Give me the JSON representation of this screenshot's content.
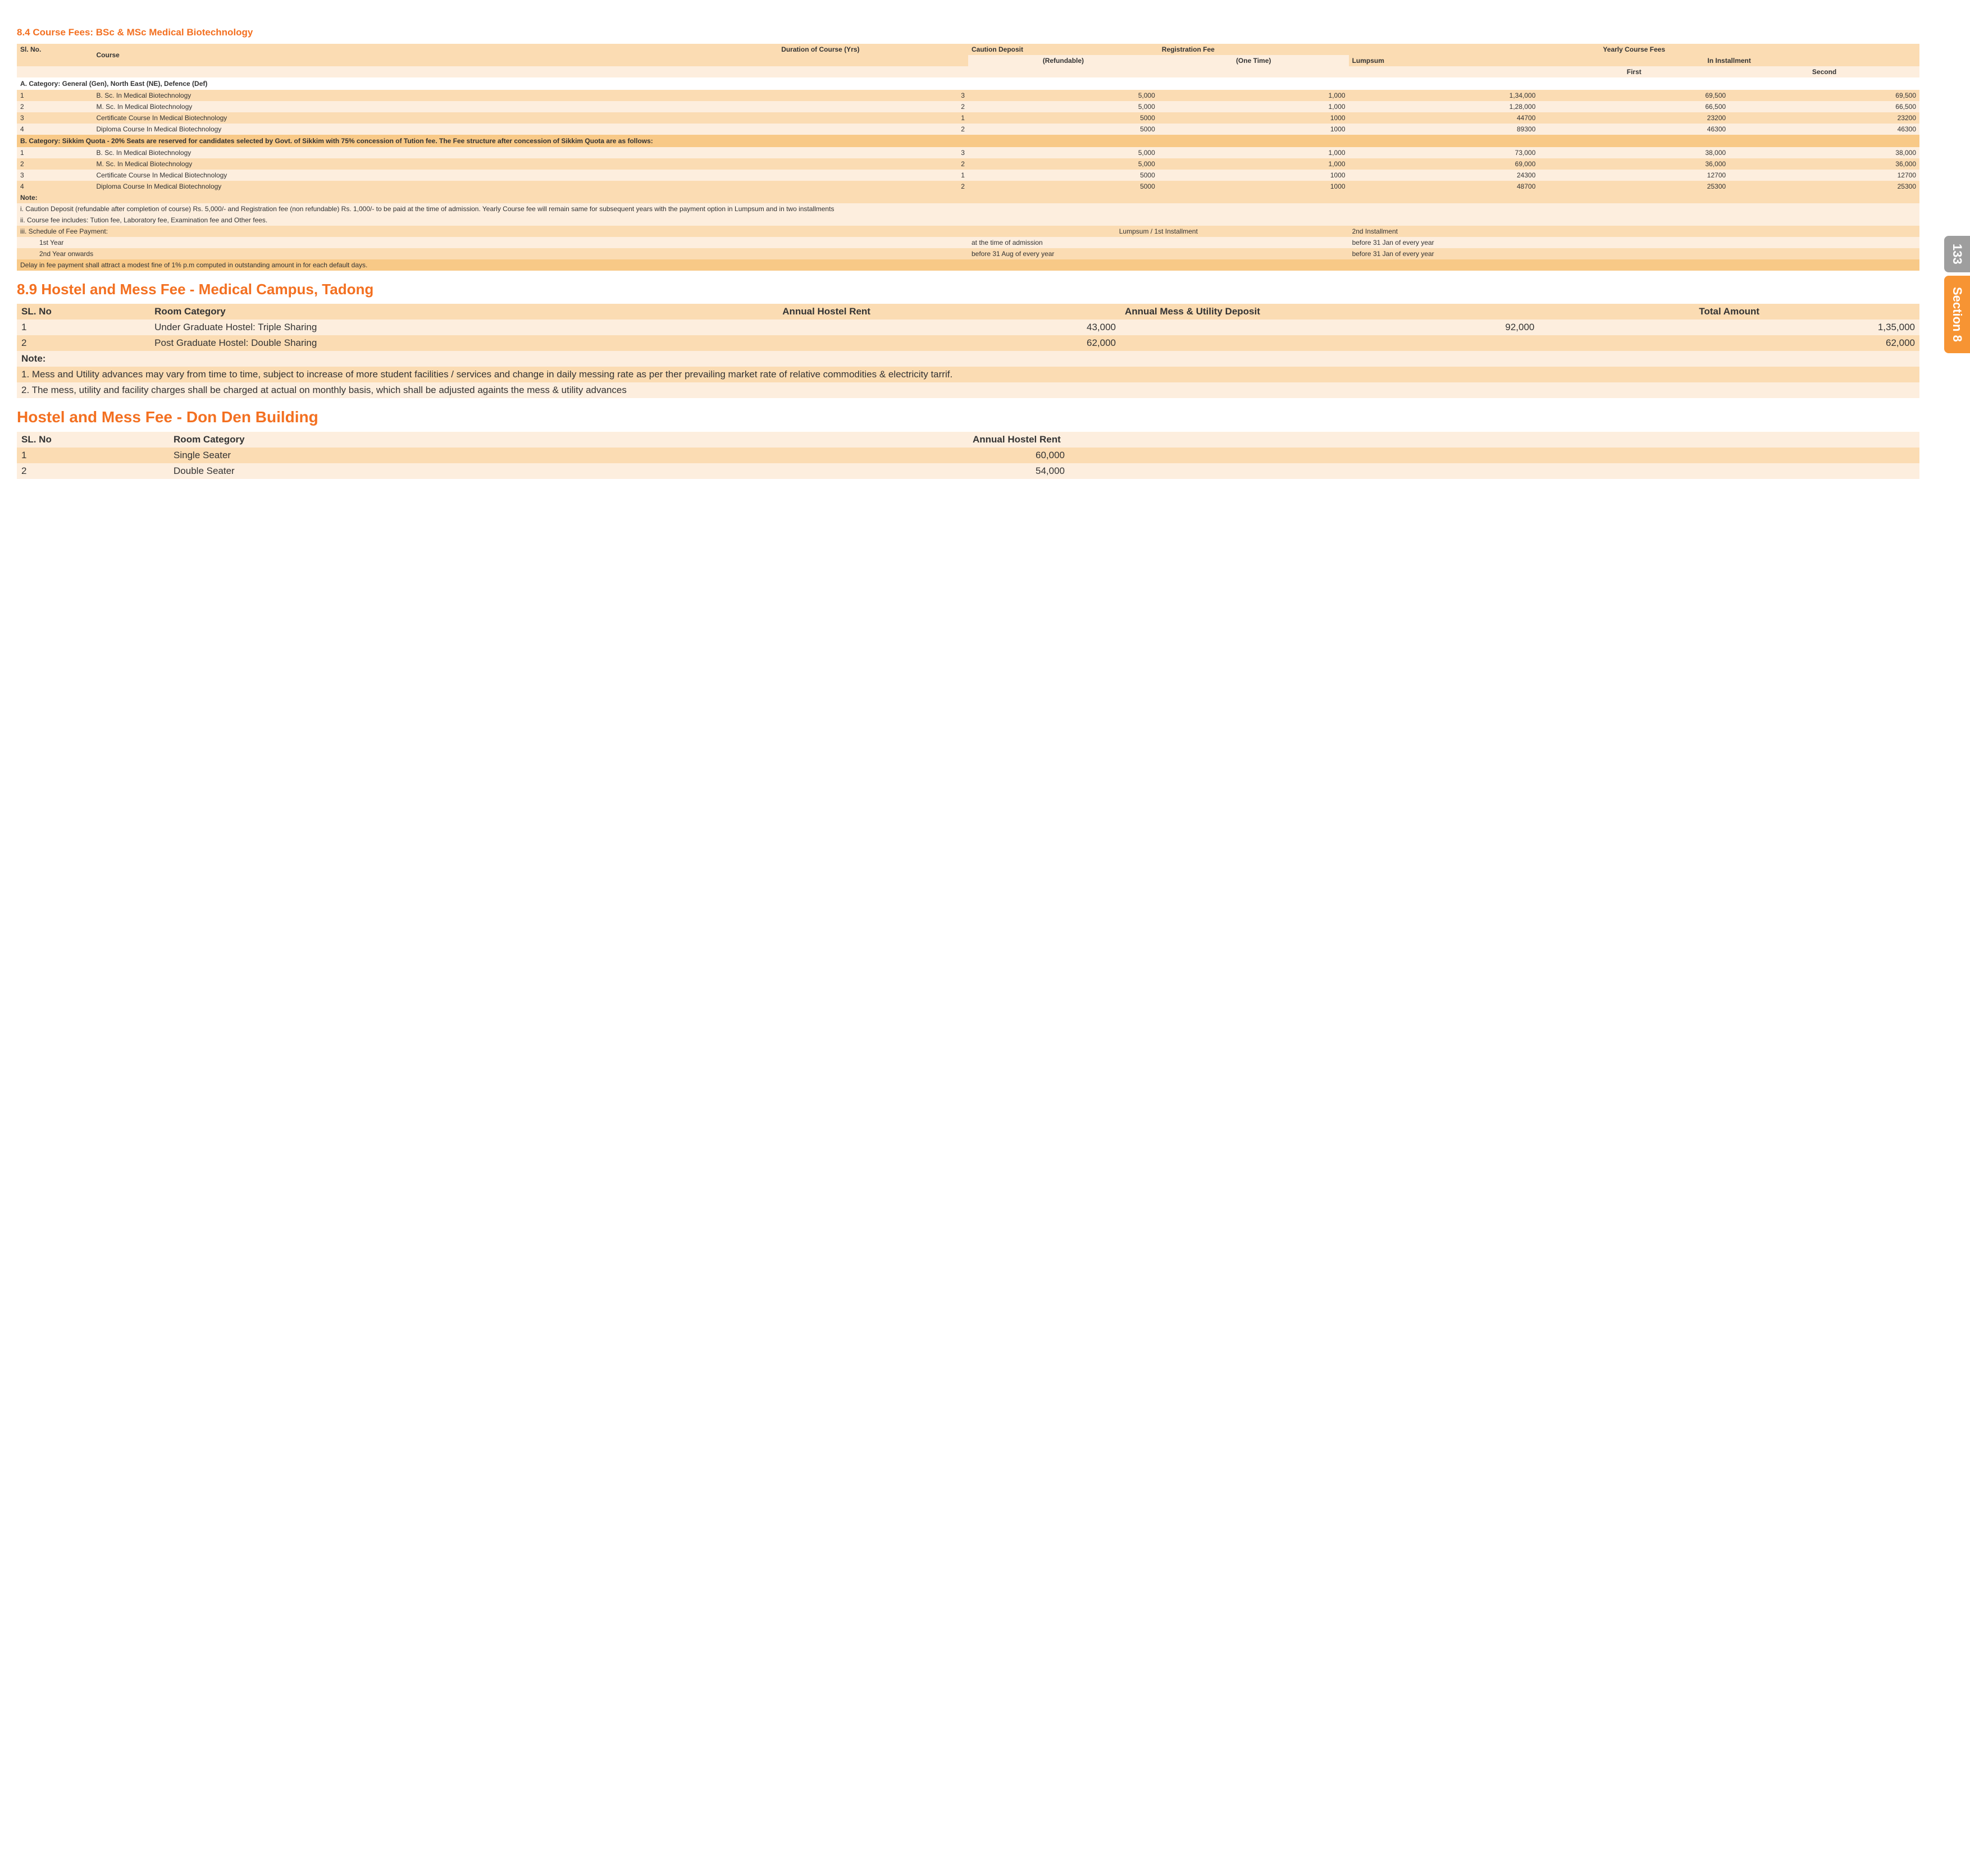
{
  "colors": {
    "accent": "#f37021",
    "row_dark": "#f8c987",
    "row_mid": "#fbdcb3",
    "row_light": "#fdeede",
    "text": "#333333",
    "side_gray": "#9e9e9e",
    "side_orange": "#f79433"
  },
  "side": {
    "page_number": "133",
    "section_label": "Section 8"
  },
  "s84": {
    "title": "8.4 Course Fees: BSc & MSc Medical Biotechnology",
    "headers": {
      "sl": "Sl. No.",
      "course": "Course",
      "duration": "Duration of Course (Yrs)",
      "caution": "Caution Deposit",
      "caution_sub": "(Refundable)",
      "reg": "Registration Fee",
      "reg_sub": "(One Time)",
      "yearly": "Yearly Course Fees",
      "lumpsum": "Lumpsum",
      "install": "In Installment",
      "first": "First",
      "second": "Second"
    },
    "catA_label": "A. Category: General (Gen), North East (NE), Defence (Def)",
    "catA_rows": [
      {
        "sl": "1",
        "course": "B. Sc. In Medical Biotechnology",
        "dur": "3",
        "cau": "5,000",
        "reg": "1,000",
        "lum": "1,34,000",
        "f": "69,500",
        "s": "69,500"
      },
      {
        "sl": "2",
        "course": "M. Sc. In Medical Biotechnology",
        "dur": "2",
        "cau": "5,000",
        "reg": "1,000",
        "lum": "1,28,000",
        "f": "66,500",
        "s": "66,500"
      },
      {
        "sl": "3",
        "course": "Certificate Course In Medical Biotechnology",
        "dur": "1",
        "cau": "5000",
        "reg": "1000",
        "lum": "44700",
        "f": "23200",
        "s": "23200"
      },
      {
        "sl": "4",
        "course": "Diploma Course In Medical Biotechnology",
        "dur": "2",
        "cau": "5000",
        "reg": "1000",
        "lum": "89300",
        "f": "46300",
        "s": "46300"
      }
    ],
    "catB_label": "B. Category: Sikkim Quota - 20% Seats are reserved for candidates selected by Govt. of Sikkim with 75% concession  of Tution fee. The Fee structure after concession of Sikkim Quota are as follows:",
    "catB_rows": [
      {
        "sl": "1",
        "course": "B. Sc. In Medical Biotechnology",
        "dur": "3",
        "cau": "5,000",
        "reg": "1,000",
        "lum": "73,000",
        "f": "38,000",
        "s": "38,000"
      },
      {
        "sl": "2",
        "course": "M. Sc. In Medical Biotechnology",
        "dur": "2",
        "cau": "5,000",
        "reg": "1,000",
        "lum": "69,000",
        "f": "36,000",
        "s": "36,000"
      },
      {
        "sl": "3",
        "course": "Certificate Course In Medical Biotechnology",
        "dur": "1",
        "cau": "5000",
        "reg": "1000",
        "lum": "24300",
        "f": "12700",
        "s": "12700"
      },
      {
        "sl": "4",
        "course": "Diploma Course In Medical Biotechnology",
        "dur": "2",
        "cau": "5000",
        "reg": "1000",
        "lum": "48700",
        "f": "25300",
        "s": "25300"
      }
    ],
    "notes": {
      "label": "Note:",
      "n1": "i. Caution Deposit (refundable after completion of course) Rs. 5,000/- and Registration fee (non refundable) Rs. 1,000/- to be paid at the time of admission.  Yearly Course fee will remain same for subsequent years with the payment option in Lumpsum and in two installments",
      "n2": "ii. Course fee includes: Tution fee, Laboratory fee, Examination fee and Other fees.",
      "n3": "iii. Schedule of Fee Payment:",
      "sched_h1": "Lumpsum / 1st Installment",
      "sched_h2": "2nd Installment",
      "y1_label": "1st Year",
      "y1_c1": "at the time of admission",
      "y1_c2": "before 31 Jan of every year",
      "y2_label": "2nd Year onwards",
      "y2_c1": "before 31 Aug  of every year",
      "y2_c2": "before 31 Jan of every year",
      "delay": "Delay in fee payment shall attract a modest fine of 1% p.m computed in outstanding amount in for each default days."
    }
  },
  "s89": {
    "title": "8.9 Hostel and Mess Fee - Medical Campus, Tadong",
    "headers": {
      "sl": "SL. No",
      "room": "Room Category",
      "rent": "Annual Hostel Rent",
      "mess": "Annual Mess & Utility Deposit",
      "total": "Total Amount"
    },
    "rows": [
      {
        "sl": "1",
        "room": "Under Graduate Hostel: Triple Sharing",
        "rent": "43,000",
        "mess": "92,000",
        "total": "1,35,000"
      },
      {
        "sl": "2",
        "room": "Post Graduate Hostel: Double Sharing",
        "rent": "62,000",
        "mess": "",
        "total": "62,000"
      }
    ],
    "notes": {
      "label": "Note:",
      "n1": "1.      Mess and Utility advances may vary from time to time, subject to increase of more student facilities / services and change in daily messing rate as per ther prevailing market rate of relative commodities & electricity tarrif.",
      "n2": "2.      The mess, utility and facility charges shall be charged at actual on monthly basis, which shall be adjusted againts the mess & utility advances"
    }
  },
  "donden": {
    "title": "Hostel and Mess Fee - Don Den Building",
    "headers": {
      "sl": "SL. No",
      "room": "Room Category",
      "rent": "Annual Hostel Rent"
    },
    "rows": [
      {
        "sl": "1",
        "room": "Single Seater",
        "rent": "60,000"
      },
      {
        "sl": "2",
        "room": "Double Seater",
        "rent": "54,000"
      }
    ]
  }
}
